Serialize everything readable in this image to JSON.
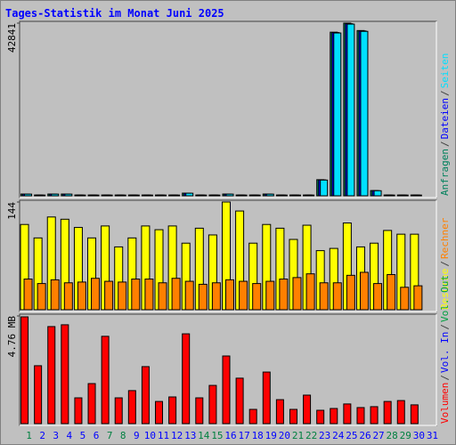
{
  "title": "Tages-Statistik im Monat Juni 2025",
  "legend_separator": "/",
  "chart_data": [
    {
      "type": "bar",
      "ylim": [
        0,
        42841
      ],
      "yticks": [
        42841
      ],
      "series": [
        {
          "name": "Anfragen",
          "color": "#00805c",
          "values": [
            440,
            200,
            440,
            440,
            200,
            200,
            200,
            200,
            200,
            200,
            200,
            200,
            660,
            200,
            200,
            440,
            200,
            200,
            440,
            200,
            200,
            200,
            4000,
            40600,
            42841,
            41000,
            1300,
            200,
            200,
            200,
            null
          ]
        },
        {
          "name": "Dateien",
          "color": "#0000ff",
          "values": [
            430,
            190,
            430,
            430,
            190,
            190,
            190,
            190,
            190,
            190,
            190,
            190,
            650,
            190,
            190,
            430,
            190,
            190,
            430,
            190,
            190,
            190,
            3950,
            40500,
            42700,
            40900,
            1280,
            190,
            190,
            190,
            null
          ]
        },
        {
          "name": "Seiten",
          "color": "#00e0ff",
          "values": [
            420,
            180,
            420,
            420,
            180,
            180,
            180,
            180,
            180,
            180,
            180,
            180,
            640,
            180,
            180,
            420,
            180,
            180,
            420,
            180,
            180,
            180,
            3900,
            40400,
            42600,
            40800,
            1260,
            180,
            180,
            180,
            null
          ]
        }
      ]
    },
    {
      "type": "bar",
      "ylim": [
        0,
        144
      ],
      "yticks": [
        144
      ],
      "series": [
        {
          "name": "Besuche",
          "color": "#ffff00",
          "values": [
            114,
            96,
            124,
            121,
            110,
            96,
            112,
            84,
            96,
            112,
            107,
            112,
            89,
            109,
            100,
            144,
            132,
            89,
            114,
            109,
            94,
            113,
            79,
            82,
            116,
            84,
            89,
            106,
            101,
            101,
            null
          ]
        },
        {
          "name": "Rechner",
          "color": "#ff8000",
          "values": [
            41,
            35,
            40,
            36,
            37,
            42,
            38,
            37,
            41,
            41,
            36,
            42,
            38,
            34,
            36,
            40,
            38,
            35,
            38,
            41,
            43,
            48,
            36,
            36,
            46,
            50,
            35,
            47,
            30,
            32,
            null
          ]
        }
      ]
    },
    {
      "type": "bar",
      "ylim": [
        0,
        4.76
      ],
      "yticks": [
        {
          "value": 4.76,
          "label": "4.76 MB"
        }
      ],
      "categories": [
        "1",
        "2",
        "3",
        "4",
        "5",
        "6",
        "7",
        "8",
        "9",
        "10",
        "11",
        "12",
        "13",
        "14",
        "15",
        "16",
        "17",
        "18",
        "19",
        "20",
        "21",
        "22",
        "23",
        "24",
        "25",
        "26",
        "27",
        "28",
        "29",
        "30",
        "31"
      ],
      "category_colors": [
        "#008040",
        "#0000ff",
        "#0000ff",
        "#0000ff",
        "#0000ff",
        "#0000ff",
        "#008040",
        "#008040",
        "#0000ff",
        "#0000ff",
        "#0000ff",
        "#0000ff",
        "#0000ff",
        "#008040",
        "#008040",
        "#0000ff",
        "#0000ff",
        "#0000ff",
        "#0000ff",
        "#0000ff",
        "#008040",
        "#008040",
        "#0000ff",
        "#0000ff",
        "#0000ff",
        "#0000ff",
        "#0000ff",
        "#008040",
        "#008040",
        "#0000ff",
        "#0000ff"
      ],
      "series": [
        {
          "name": "Volumen",
          "color": "#ff0000",
          "values": [
            4.72,
            2.56,
            4.29,
            4.37,
            1.14,
            1.77,
            3.86,
            1.14,
            1.46,
            2.52,
            0.98,
            1.18,
            3.97,
            1.14,
            1.69,
            2.99,
            2.01,
            0.63,
            2.28,
            1.06,
            0.63,
            1.26,
            0.59,
            0.67,
            0.87,
            0.71,
            0.75,
            0.98,
            1.02,
            0.83,
            null
          ]
        },
        {
          "name": "Vol. In",
          "color": "#0000ff",
          "values": [
            0,
            0,
            0,
            0,
            0,
            0,
            0,
            0,
            0,
            0,
            0,
            0,
            0,
            0,
            0,
            0,
            0,
            0,
            0,
            0,
            0,
            0,
            0,
            0,
            0,
            0,
            0,
            0,
            0,
            0,
            null
          ]
        },
        {
          "name": "Vol. Out",
          "color": "#00a040",
          "values": [
            0,
            0,
            0,
            0,
            0,
            0,
            0,
            0,
            0,
            0,
            0,
            0,
            0,
            0,
            0,
            0,
            0,
            0,
            0,
            0,
            0,
            0,
            0,
            0,
            0,
            0,
            0,
            0,
            0,
            0,
            null
          ]
        }
      ]
    }
  ]
}
